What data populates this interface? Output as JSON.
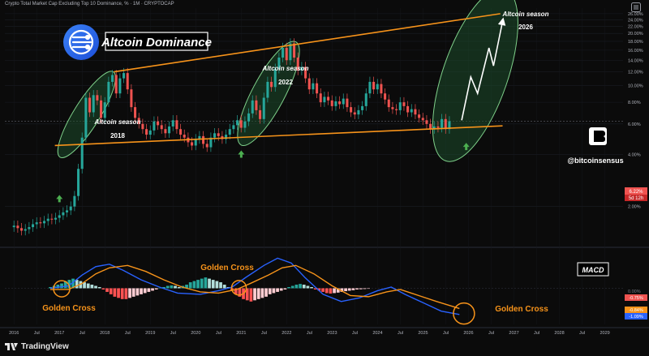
{
  "header": {
    "symbol_line": "Crypto Total Market Cap Excluding Top 10 Dominance, % · 1M · CRYPTOCAP"
  },
  "title_badge": {
    "label": "Altcoin Dominance"
  },
  "annotations": {
    "season_2018_title": "Altcoin season",
    "season_2018_year": "2018",
    "season_2022_title": "Altcoin season",
    "season_2022_year": "2022",
    "season_2026_title": "Altcoin season",
    "season_2026_year": "2026",
    "golden_cross_1": "Golden Cross",
    "golden_cross_2": "Golden Cross",
    "golden_cross_3": "Golden Cross",
    "handle": "@bitcoinsensus",
    "macd_label": "MACD"
  },
  "price_badges": {
    "current": "6.22%",
    "countdown": "5d 12h"
  },
  "macd_badges": {
    "zero": "0.00%",
    "signal": "-0.75%",
    "line1": "-0.84%",
    "line2": "-1.09%"
  },
  "footer": {
    "brand": "TradingView"
  },
  "colors": {
    "up": "#26a69a",
    "down": "#ef5350",
    "trendline": "#f7931a",
    "macd_line": "#2962ff",
    "signal_line": "#f7931a",
    "ellipse_fill": "#1e4d2b",
    "arrow": "#4caf50"
  },
  "chart_data": [
    {
      "type": "candlestick",
      "title": "Altcoin Dominance",
      "y_scale": "log",
      "ylim": [
        1.2,
        28
      ],
      "y_ticks": [
        "2.00%",
        "4.00%",
        "6.00%",
        "8.00%",
        "10.00%",
        "12.00%",
        "14.00%",
        "16.00%",
        "18.00%",
        "20.00%",
        "22.00%",
        "24.00%",
        "26.00%"
      ],
      "y_tick_values": [
        2,
        4,
        6,
        8,
        10,
        12,
        14,
        16,
        18,
        20,
        22,
        24,
        26
      ],
      "x_ticks": [
        "2016",
        "Jul",
        "2017",
        "Jul",
        "2018",
        "Jul",
        "2019",
        "Jul",
        "2020",
        "Jul",
        "2021",
        "Jul",
        "2022",
        "Jul",
        "2023",
        "Jul",
        "2024",
        "Jul",
        "2025",
        "Jul",
        "2026",
        "Jul",
        "2027",
        "Jul",
        "2028",
        "Jul",
        "2029"
      ],
      "x_tick_values": [
        2016,
        2016.5,
        2017,
        2017.5,
        2018,
        2018.5,
        2019,
        2019.5,
        2020,
        2020.5,
        2021,
        2021.5,
        2022,
        2022.5,
        2023,
        2023.5,
        2024,
        2024.5,
        2025,
        2025.5,
        2026,
        2026.5,
        2027,
        2027.5,
        2028,
        2028.5,
        2029
      ],
      "xlim": [
        2015.8,
        2029.4
      ],
      "closes": [
        1.55,
        1.5,
        1.45,
        1.48,
        1.52,
        1.58,
        1.62,
        1.6,
        1.65,
        1.7,
        1.68,
        1.72,
        1.78,
        1.85,
        1.9,
        2.0,
        2.3,
        3.3,
        5.0,
        8.5,
        7.0,
        8.8,
        8.2,
        6.5,
        8.0,
        10.5,
        11.5,
        9.0,
        11.0,
        11.8,
        9.5,
        7.5,
        6.5,
        6.0,
        5.6,
        5.2,
        5.5,
        6.2,
        5.9,
        5.6,
        5.3,
        5.8,
        6.3,
        5.6,
        5.2,
        5.0,
        4.7,
        4.5,
        4.9,
        5.1,
        4.6,
        4.4,
        5.0,
        5.3,
        5.1,
        4.9,
        5.2,
        5.6,
        5.9,
        6.3,
        5.7,
        6.2,
        6.9,
        8.2,
        7.2,
        6.4,
        8.5,
        10.5,
        9.8,
        12.5,
        14.5,
        16.5,
        14.0,
        17.5,
        14.5,
        12.2,
        12.8,
        11.0,
        9.5,
        10.3,
        9.0,
        8.0,
        8.6,
        8.2,
        7.6,
        8.1,
        7.8,
        8.4,
        7.5,
        7.0,
        6.8,
        7.2,
        7.6,
        9.0,
        10.5,
        9.5,
        10.2,
        9.0,
        8.3,
        7.5,
        7.3,
        7.2,
        8.0,
        7.6,
        7.0,
        7.3,
        6.8,
        6.5,
        6.3,
        6.0,
        5.6,
        5.8,
        5.7,
        6.4,
        5.6,
        6.22
      ],
      "t_start": 2016.0,
      "t_step": 0.0833,
      "trend_upper": {
        "from": [
          2018.2,
          12.0
        ],
        "to": [
          2026.7,
          26.0
        ]
      },
      "trend_lower": {
        "from": [
          2016.9,
          4.5
        ],
        "to": [
          2026.75,
          5.85
        ]
      },
      "current_value": 6.22
    },
    {
      "type": "macd",
      "title": "MACD",
      "ylim": [
        -1.5,
        1.6
      ],
      "macd_line": [
        [
          2016.8,
          0.0
        ],
        [
          2017.2,
          0.1
        ],
        [
          2017.5,
          0.55
        ],
        [
          2017.8,
          0.9
        ],
        [
          2018.1,
          1.0
        ],
        [
          2018.4,
          0.75
        ],
        [
          2018.8,
          0.35
        ],
        [
          2019.2,
          0.05
        ],
        [
          2019.6,
          -0.2
        ],
        [
          2020.1,
          -0.25
        ],
        [
          2020.5,
          -0.1
        ],
        [
          2020.8,
          0.05
        ],
        [
          2021.1,
          0.45
        ],
        [
          2021.5,
          0.95
        ],
        [
          2021.8,
          1.25
        ],
        [
          2022.1,
          1.05
        ],
        [
          2022.4,
          0.45
        ],
        [
          2022.8,
          -0.25
        ],
        [
          2023.2,
          -0.55
        ],
        [
          2023.6,
          -0.4
        ],
        [
          2024.0,
          -0.1
        ],
        [
          2024.3,
          0.05
        ],
        [
          2024.6,
          -0.25
        ],
        [
          2025.0,
          -0.6
        ],
        [
          2025.4,
          -0.95
        ],
        [
          2025.8,
          -1.09
        ]
      ],
      "signal_line": [
        [
          2016.8,
          -0.05
        ],
        [
          2017.2,
          -0.05
        ],
        [
          2017.5,
          0.2
        ],
        [
          2017.8,
          0.6
        ],
        [
          2018.1,
          0.85
        ],
        [
          2018.5,
          0.95
        ],
        [
          2018.9,
          0.7
        ],
        [
          2019.3,
          0.35
        ],
        [
          2019.7,
          0.05
        ],
        [
          2020.1,
          -0.15
        ],
        [
          2020.5,
          -0.2
        ],
        [
          2020.9,
          -0.05
        ],
        [
          2021.2,
          0.2
        ],
        [
          2021.6,
          0.55
        ],
        [
          2021.9,
          0.85
        ],
        [
          2022.2,
          0.95
        ],
        [
          2022.6,
          0.6
        ],
        [
          2023.0,
          0.1
        ],
        [
          2023.4,
          -0.3
        ],
        [
          2023.8,
          -0.35
        ],
        [
          2024.2,
          -0.15
        ],
        [
          2024.5,
          -0.05
        ],
        [
          2024.9,
          -0.3
        ],
        [
          2025.3,
          -0.55
        ],
        [
          2025.8,
          -0.84
        ]
      ],
      "histogram_start": 2016.8,
      "histogram_step": 0.0833,
      "histogram": [
        0.05,
        0.1,
        0.15,
        0.2,
        0.3,
        0.35,
        0.4,
        0.35,
        0.3,
        0.25,
        0.2,
        0.15,
        0.1,
        0.05,
        -0.05,
        -0.15,
        -0.25,
        -0.35,
        -0.4,
        -0.45,
        -0.45,
        -0.4,
        -0.35,
        -0.3,
        -0.25,
        -0.2,
        -0.15,
        -0.1,
        -0.05,
        0.02,
        0.05,
        0.1,
        0.12,
        0.1,
        0.05,
        0.1,
        0.15,
        0.25,
        0.3,
        0.35,
        0.4,
        0.45,
        0.4,
        0.35,
        0.3,
        0.25,
        0.15,
        0.05,
        -0.1,
        -0.25,
        -0.35,
        -0.45,
        -0.5,
        -0.55,
        -0.5,
        -0.45,
        -0.4,
        -0.35,
        -0.25,
        -0.2,
        -0.15,
        -0.1,
        -0.05,
        0.05,
        0.1,
        0.15,
        0.18,
        0.15,
        0.1,
        0.05,
        -0.05,
        -0.1,
        -0.15,
        -0.2,
        -0.22,
        -0.2,
        -0.18,
        -0.15,
        -0.12,
        -0.1,
        -0.08,
        -0.05,
        -0.04,
        -0.03,
        -0.02
      ]
    }
  ]
}
